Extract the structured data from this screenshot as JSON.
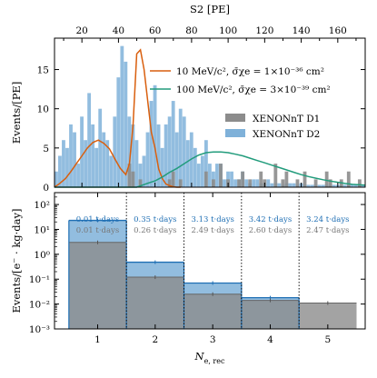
{
  "chart_data": [
    {
      "type": "histogram",
      "xlabel_top": "S2 [PE]",
      "top_ticks": [
        "20",
        "40",
        "60",
        "80",
        "100",
        "120",
        "140",
        "160"
      ],
      "top_tick_values": [
        20,
        40,
        60,
        80,
        100,
        120,
        140,
        160
      ],
      "xlim": [
        5,
        175
      ],
      "ylabel": "Events/[PE]",
      "ylim": [
        0,
        19
      ],
      "y_ticks": [
        "0",
        "5",
        "10",
        "15"
      ],
      "y_tick_values": [
        0,
        5,
        10,
        15
      ],
      "bin_width": 2,
      "colors": {
        "d1": "#8c8c8c",
        "d2": "#7fb1d9",
        "m10": "#d95f0e",
        "m100": "#229c7c"
      },
      "legend": {
        "m10": "10 MeV/c², σ̄χe = 1×10⁻³⁶ cm²",
        "m100": "100 MeV/c², σ̄χe = 3×10⁻³⁹ cm²",
        "d1": "XENONnT D1",
        "d2": "XENONnT D2"
      },
      "series": [
        {
          "name": "XENONnT D2",
          "x_start": 5,
          "values": [
            2,
            4,
            6,
            5,
            8,
            7,
            3,
            9,
            6,
            12,
            8,
            5,
            10,
            7,
            6,
            4,
            9,
            14,
            18,
            16,
            9,
            8,
            6,
            3,
            4,
            7,
            11,
            13,
            8,
            5,
            8,
            9,
            11,
            7,
            10,
            9,
            6,
            7,
            5,
            3,
            4,
            6,
            3,
            2,
            3,
            3,
            1,
            2,
            2,
            1,
            1,
            2,
            1,
            0.5,
            1,
            1,
            0.5,
            0.5,
            1,
            0.5,
            0.5,
            0.5,
            0.3,
            0.5,
            0.5,
            0.5,
            0.3,
            0.5,
            0.3,
            0.3,
            0.3,
            0.3,
            0.3,
            0.3,
            0.3,
            0.3,
            0.3,
            0.3,
            0.3,
            0.3,
            0.3,
            0.3,
            0.3,
            0.3,
            0.3
          ]
        },
        {
          "name": "XENONnT D1",
          "x_start": 5,
          "values": [
            0,
            0,
            0,
            0,
            0,
            0,
            0,
            0,
            0,
            0,
            0,
            0,
            0,
            0,
            0,
            0,
            0,
            0,
            0,
            0,
            3,
            2,
            0,
            1,
            0,
            0,
            0,
            0,
            0,
            0,
            0,
            1,
            2,
            0,
            1,
            0,
            0,
            0,
            0,
            0,
            0,
            2,
            0,
            1,
            0,
            3,
            0,
            1,
            0,
            0,
            1,
            2,
            0,
            1,
            0,
            0,
            2,
            1,
            0,
            0,
            3,
            0,
            1,
            2,
            0,
            0,
            1,
            0,
            2,
            0,
            0,
            1,
            0,
            0,
            2,
            1,
            0,
            0,
            1,
            0,
            2,
            0,
            0,
            1,
            0
          ]
        },
        {
          "name": "10 MeV/c²",
          "x": [
            5,
            8,
            11,
            14,
            17,
            20,
            23,
            26,
            29,
            32,
            35,
            38,
            41,
            44,
            46,
            48,
            50,
            52,
            54,
            56,
            58,
            60,
            62,
            64,
            66,
            68,
            70,
            72,
            74
          ],
          "y": [
            0,
            0.5,
            1.1,
            2,
            3,
            4,
            5,
            5.7,
            6,
            5.6,
            4.9,
            3.6,
            2.4,
            1.6,
            3,
            8,
            17,
            17.5,
            15,
            11,
            7,
            5,
            2.3,
            1.1,
            0.4,
            0.2,
            0.05,
            0,
            0
          ]
        },
        {
          "name": "100 MeV/c²",
          "x": [
            5,
            40,
            50,
            56,
            60,
            64,
            68,
            72,
            76,
            80,
            84,
            88,
            92,
            96,
            100,
            104,
            108,
            112,
            116,
            120,
            124,
            128,
            132,
            136,
            140,
            144,
            148,
            152,
            156,
            160,
            164,
            168,
            172,
            175
          ],
          "y": [
            0,
            0,
            0,
            0.5,
            0.8,
            1.3,
            1.9,
            2.4,
            3,
            3.6,
            4.1,
            4.4,
            4.5,
            4.5,
            4.4,
            4.2,
            4,
            3.7,
            3.4,
            3.1,
            2.8,
            2.5,
            2.2,
            1.9,
            1.6,
            1.35,
            1.15,
            0.95,
            0.78,
            0.62,
            0.48,
            0.36,
            0.3,
            0.26
          ]
        }
      ]
    },
    {
      "type": "step-bar",
      "xlabel": "Ne, rec",
      "xlim": [
        0.25,
        5.65
      ],
      "x_ticks": [
        "1",
        "2",
        "3",
        "4",
        "5"
      ],
      "x_tick_values": [
        1,
        2,
        3,
        4,
        5
      ],
      "ylabel": "Events/[e⁻ · kg·day]",
      "ylim": [
        0.001,
        300
      ],
      "log_y": true,
      "y_ticks": [
        "10⁻³",
        "10⁻²",
        "10⁻¹",
        "10⁰",
        "10¹",
        "10²"
      ],
      "y_tick_values": [
        0.001,
        0.01,
        0.1,
        1,
        10,
        100
      ],
      "bin_edges": [
        0.5,
        1.5,
        2.5,
        3.5,
        4.5,
        5.5
      ],
      "separators": [
        1.5,
        2.5,
        3.5,
        4.5
      ],
      "series": [
        {
          "name": "XENONnT D2",
          "values": [
            23,
            0.48,
            0.07,
            0.018,
            0
          ],
          "exposure_labels": [
            "0.01 t·days",
            "0.35 t·days",
            "3.13 t·days",
            "3.42 t·days",
            "3.24 t·days"
          ]
        },
        {
          "name": "XENONnT D1",
          "values": [
            3,
            0.12,
            0.025,
            0.014,
            0.011
          ],
          "exposure_labels": [
            "0.01 t·days",
            "0.26 t·days",
            "2.49 t·days",
            "2.60 t·days",
            "2.47 t·days"
          ]
        }
      ]
    }
  ]
}
